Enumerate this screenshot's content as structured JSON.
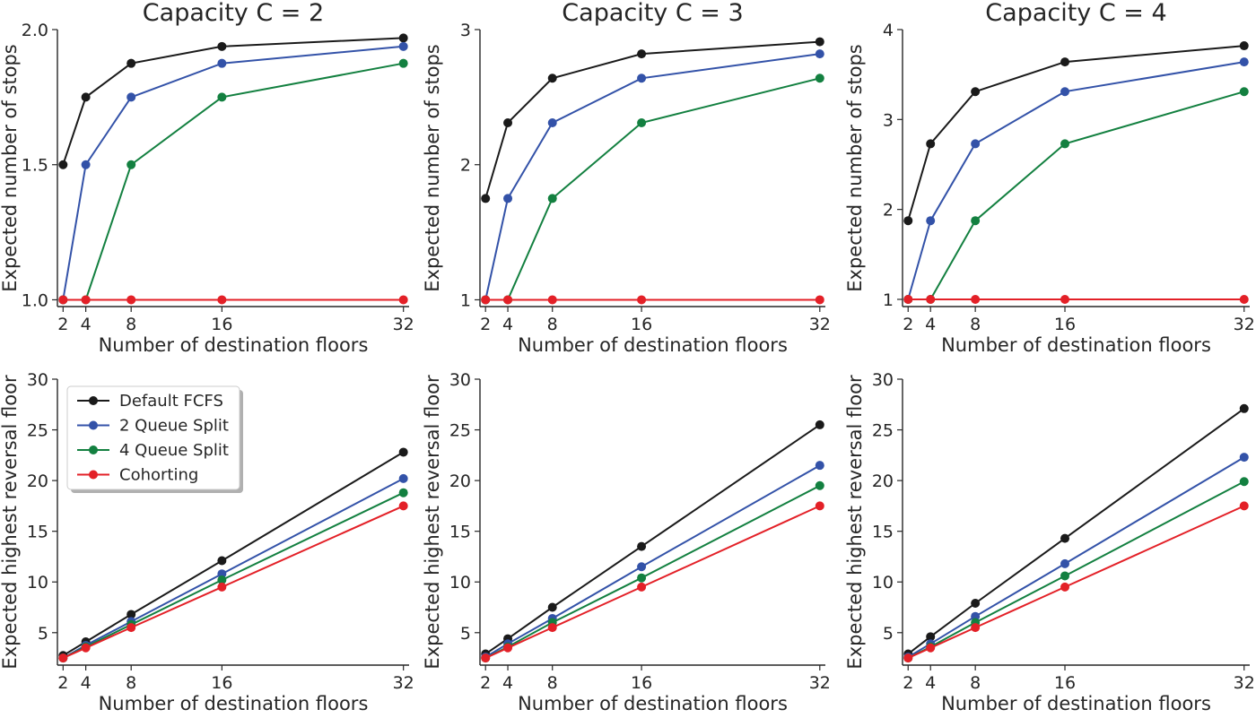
{
  "colors": {
    "Default FCFS": "#1a1a1a",
    "2 Queue Split": "#3352a8",
    "4 Queue Split": "#138040",
    "Cohorting": "#e32027"
  },
  "legend": {
    "location": "upper-left of bottom-left panel",
    "entries": [
      "Default FCFS",
      "2 Queue Split",
      "4 Queue Split",
      "Cohorting"
    ]
  },
  "chart_data": [
    {
      "type": "line",
      "title": "Capacity C = 2",
      "xlabel": "Number of destination floors",
      "ylabel": "Expected number of stops",
      "x": [
        2,
        4,
        8,
        16,
        32
      ],
      "xlim": [
        1.5,
        32.5
      ],
      "xticks": [
        "2",
        "4",
        "8",
        "16",
        "32"
      ],
      "ylim": [
        0.975,
        2.0
      ],
      "yticks": [
        "1.0",
        "1.5",
        "2.0"
      ],
      "ytick_values": [
        1.0,
        1.5,
        2.0
      ],
      "series": [
        {
          "name": "Default FCFS",
          "values": [
            1.5,
            1.75,
            1.875,
            1.9375,
            1.96875
          ]
        },
        {
          "name": "2 Queue Split",
          "values": [
            1.0,
            1.5,
            1.75,
            1.875,
            1.9375
          ]
        },
        {
          "name": "4 Queue Split",
          "values": [
            1.0,
            1.0,
            1.5,
            1.75,
            1.875
          ]
        },
        {
          "name": "Cohorting",
          "values": [
            1.0,
            1.0,
            1.0,
            1.0,
            1.0
          ]
        }
      ]
    },
    {
      "type": "line",
      "title": "Capacity C = 3",
      "xlabel": "Number of destination floors",
      "ylabel": "Expected number of stops",
      "x": [
        2,
        4,
        8,
        16,
        32
      ],
      "xlim": [
        1.5,
        32.5
      ],
      "xticks": [
        "2",
        "4",
        "8",
        "16",
        "32"
      ],
      "ylim": [
        0.95,
        3.0
      ],
      "yticks": [
        "1",
        "2",
        "3"
      ],
      "ytick_values": [
        1,
        2,
        3
      ],
      "series": [
        {
          "name": "Default FCFS",
          "values": [
            1.75,
            2.31,
            2.64,
            2.82,
            2.91
          ]
        },
        {
          "name": "2 Queue Split",
          "values": [
            1.0,
            1.75,
            2.31,
            2.64,
            2.82
          ]
        },
        {
          "name": "4 Queue Split",
          "values": [
            1.0,
            1.0,
            1.75,
            2.31,
            2.64
          ]
        },
        {
          "name": "Cohorting",
          "values": [
            1.0,
            1.0,
            1.0,
            1.0,
            1.0
          ]
        }
      ]
    },
    {
      "type": "line",
      "title": "Capacity C = 4",
      "xlabel": "Number of destination floors",
      "ylabel": "Expected number of stops",
      "x": [
        2,
        4,
        8,
        16,
        32
      ],
      "xlim": [
        1.5,
        32.5
      ],
      "xticks": [
        "2",
        "4",
        "8",
        "16",
        "32"
      ],
      "ylim": [
        0.92,
        4.0
      ],
      "yticks": [
        "1",
        "2",
        "3",
        "4"
      ],
      "ytick_values": [
        1,
        2,
        3,
        4
      ],
      "series": [
        {
          "name": "Default FCFS",
          "values": [
            1.875,
            2.73,
            3.31,
            3.64,
            3.82
          ]
        },
        {
          "name": "2 Queue Split",
          "values": [
            1.0,
            1.875,
            2.73,
            3.31,
            3.64
          ]
        },
        {
          "name": "4 Queue Split",
          "values": [
            1.0,
            1.0,
            1.875,
            2.73,
            3.31
          ]
        },
        {
          "name": "Cohorting",
          "values": [
            1.0,
            1.0,
            1.0,
            1.0,
            1.0
          ]
        }
      ]
    },
    {
      "type": "line",
      "title": "",
      "xlabel": "Number of destination floors",
      "ylabel": "Expected highest reversal floor",
      "x": [
        2,
        4,
        8,
        16,
        32
      ],
      "xlim": [
        1.5,
        32.5
      ],
      "xticks": [
        "2",
        "4",
        "8",
        "16",
        "32"
      ],
      "ylim": [
        1.8,
        30
      ],
      "yticks": [
        "5",
        "10",
        "15",
        "20",
        "25",
        "30"
      ],
      "ytick_values": [
        5,
        10,
        15,
        20,
        25,
        30
      ],
      "series": [
        {
          "name": "Default FCFS",
          "values": [
            2.75,
            4.1,
            6.8,
            12.1,
            22.8
          ]
        },
        {
          "name": "2 Queue Split",
          "values": [
            2.5,
            3.75,
            6.1,
            10.8,
            20.2
          ]
        },
        {
          "name": "4 Queue Split",
          "values": [
            2.5,
            3.6,
            5.8,
            10.2,
            18.8
          ]
        },
        {
          "name": "Cohorting",
          "values": [
            2.5,
            3.5,
            5.5,
            9.5,
            17.5
          ]
        }
      ]
    },
    {
      "type": "line",
      "title": "",
      "xlabel": "Number of destination floors",
      "ylabel": "Expected highest reversal floor",
      "x": [
        2,
        4,
        8,
        16,
        32
      ],
      "xlim": [
        1.5,
        32.5
      ],
      "xticks": [
        "2",
        "4",
        "8",
        "16",
        "32"
      ],
      "ylim": [
        1.8,
        30
      ],
      "yticks": [
        "5",
        "10",
        "15",
        "20",
        "25",
        "30"
      ],
      "ytick_values": [
        5,
        10,
        15,
        20,
        25,
        30
      ],
      "series": [
        {
          "name": "Default FCFS",
          "values": [
            2.9,
            4.4,
            7.5,
            13.5,
            25.5
          ]
        },
        {
          "name": "2 Queue Split",
          "values": [
            2.6,
            3.9,
            6.4,
            11.5,
            21.5
          ]
        },
        {
          "name": "4 Queue Split",
          "values": [
            2.5,
            3.6,
            6.0,
            10.4,
            19.5
          ]
        },
        {
          "name": "Cohorting",
          "values": [
            2.5,
            3.5,
            5.5,
            9.5,
            17.5
          ]
        }
      ]
    },
    {
      "type": "line",
      "title": "",
      "xlabel": "Number of destination floors",
      "ylabel": "Expected highest reversal floor",
      "x": [
        2,
        4,
        8,
        16,
        32
      ],
      "xlim": [
        1.5,
        32.5
      ],
      "xticks": [
        "2",
        "4",
        "8",
        "16",
        "32"
      ],
      "ylim": [
        1.8,
        30
      ],
      "yticks": [
        "5",
        "10",
        "15",
        "20",
        "25",
        "30"
      ],
      "ytick_values": [
        5,
        10,
        15,
        20,
        25,
        30
      ],
      "series": [
        {
          "name": "Default FCFS",
          "values": [
            2.9,
            4.6,
            7.9,
            14.3,
            27.1
          ]
        },
        {
          "name": "2 Queue Split",
          "values": [
            2.6,
            3.9,
            6.6,
            11.8,
            22.3
          ]
        },
        {
          "name": "4 Queue Split",
          "values": [
            2.5,
            3.6,
            6.0,
            10.6,
            19.9
          ]
        },
        {
          "name": "Cohorting",
          "values": [
            2.5,
            3.5,
            5.5,
            9.5,
            17.5
          ]
        }
      ]
    }
  ]
}
